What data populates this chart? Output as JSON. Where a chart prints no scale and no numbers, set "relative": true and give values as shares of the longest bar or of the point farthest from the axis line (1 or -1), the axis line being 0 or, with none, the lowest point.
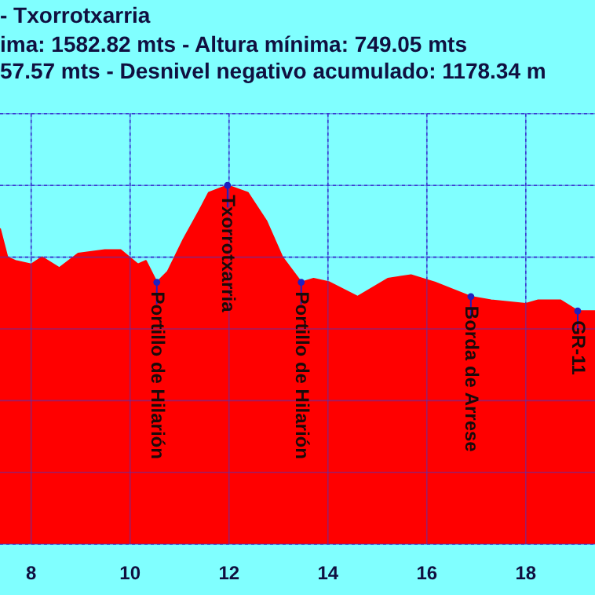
{
  "chart_data": {
    "type": "area",
    "title": "- Txorrotxarria",
    "subtitle": "ima: 1582.82 mts - Altura mínima: 749.05 mts\n57.57 mts - Desnivel negativo acumulado: 1178.34 m",
    "relative": true,
    "grid": true,
    "xlim": [
      7.37,
      19.4
    ],
    "xticks": [
      8,
      10,
      12,
      14,
      16,
      18
    ],
    "series": [
      {
        "color": "#ff0000",
        "x": [
          7.37,
          7.52,
          7.68,
          8.0,
          8.22,
          8.57,
          8.95,
          9.49,
          9.81,
          10.16,
          10.32,
          10.54,
          10.76,
          11.08,
          11.4,
          11.59,
          11.97,
          12.38,
          12.76,
          13.08,
          13.46,
          13.71,
          14.03,
          14.6,
          15.21,
          15.68,
          16.16,
          16.89,
          17.3,
          18.0,
          18.25,
          18.7,
          19.05,
          19.4
        ],
        "values": [
          0.88,
          0.8,
          0.79,
          0.78,
          0.8,
          0.77,
          0.81,
          0.82,
          0.82,
          0.78,
          0.79,
          0.73,
          0.76,
          0.85,
          0.93,
          0.98,
          1.0,
          0.98,
          0.9,
          0.8,
          0.73,
          0.74,
          0.73,
          0.69,
          0.74,
          0.75,
          0.73,
          0.69,
          0.68,
          0.67,
          0.68,
          0.68,
          0.65,
          0.65
        ]
      }
    ],
    "annotations": [
      {
        "text": "Portillo de Hilarión",
        "x": 10.54,
        "y": 0.73
      },
      {
        "text": "Txorrotxarria",
        "x": 11.97,
        "y": 1.0
      },
      {
        "text": "Portillo de Hilarión",
        "x": 13.46,
        "y": 0.73
      },
      {
        "text": "Borda de Arrese",
        "x": 16.89,
        "y": 0.69
      },
      {
        "text": "GR-11",
        "x": 19.05,
        "y": 0.65
      }
    ]
  }
}
